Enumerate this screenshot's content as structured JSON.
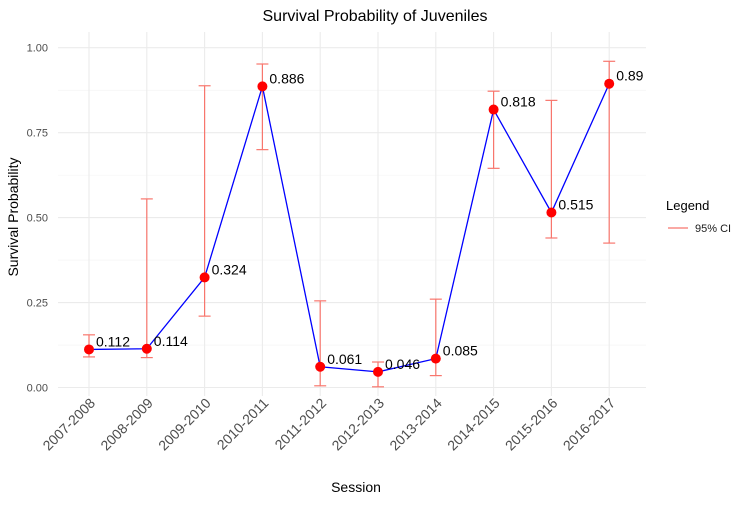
{
  "chart_data": {
    "type": "line",
    "title": "Survival Probability of Juveniles",
    "xlabel": "Session",
    "ylabel": "Survival Probability",
    "categories": [
      "2007-2008",
      "2008-2009",
      "2009-2010",
      "2010-2011",
      "2011-2012",
      "2012-2013",
      "2013-2014",
      "2014-2015",
      "2015-2016",
      "2016-2017"
    ],
    "series": [
      {
        "values": [
          0.112,
          0.114,
          0.324,
          0.886,
          0.061,
          0.046,
          0.085,
          0.818,
          0.515,
          0.894
        ],
        "labels": [
          "0.112",
          "0.114",
          "0.324",
          "0.886",
          "0.061",
          "0.046",
          "0.085",
          "0.818",
          "0.515",
          "0.89"
        ],
        "line_color": "#0000ff",
        "point_color": "#ff0000"
      }
    ],
    "ci_lower": [
      0.09,
      0.088,
      0.21,
      0.7,
      0.005,
      0.002,
      0.035,
      0.645,
      0.44,
      0.425
    ],
    "ci_upper": [
      0.155,
      0.555,
      0.888,
      0.952,
      0.255,
      0.075,
      0.26,
      0.872,
      0.845,
      0.96
    ],
    "ci_color": "#f8766d",
    "yticks": [
      "0.00",
      "0.25",
      "0.50",
      "0.75",
      "1.00"
    ],
    "ytick_values": [
      0,
      0.25,
      0.5,
      0.75,
      1.0
    ],
    "ylim": [
      0,
      1.0
    ],
    "grid": true,
    "legend": {
      "title": "Legend",
      "entries": [
        "95% CI"
      ],
      "placement": "right"
    }
  }
}
